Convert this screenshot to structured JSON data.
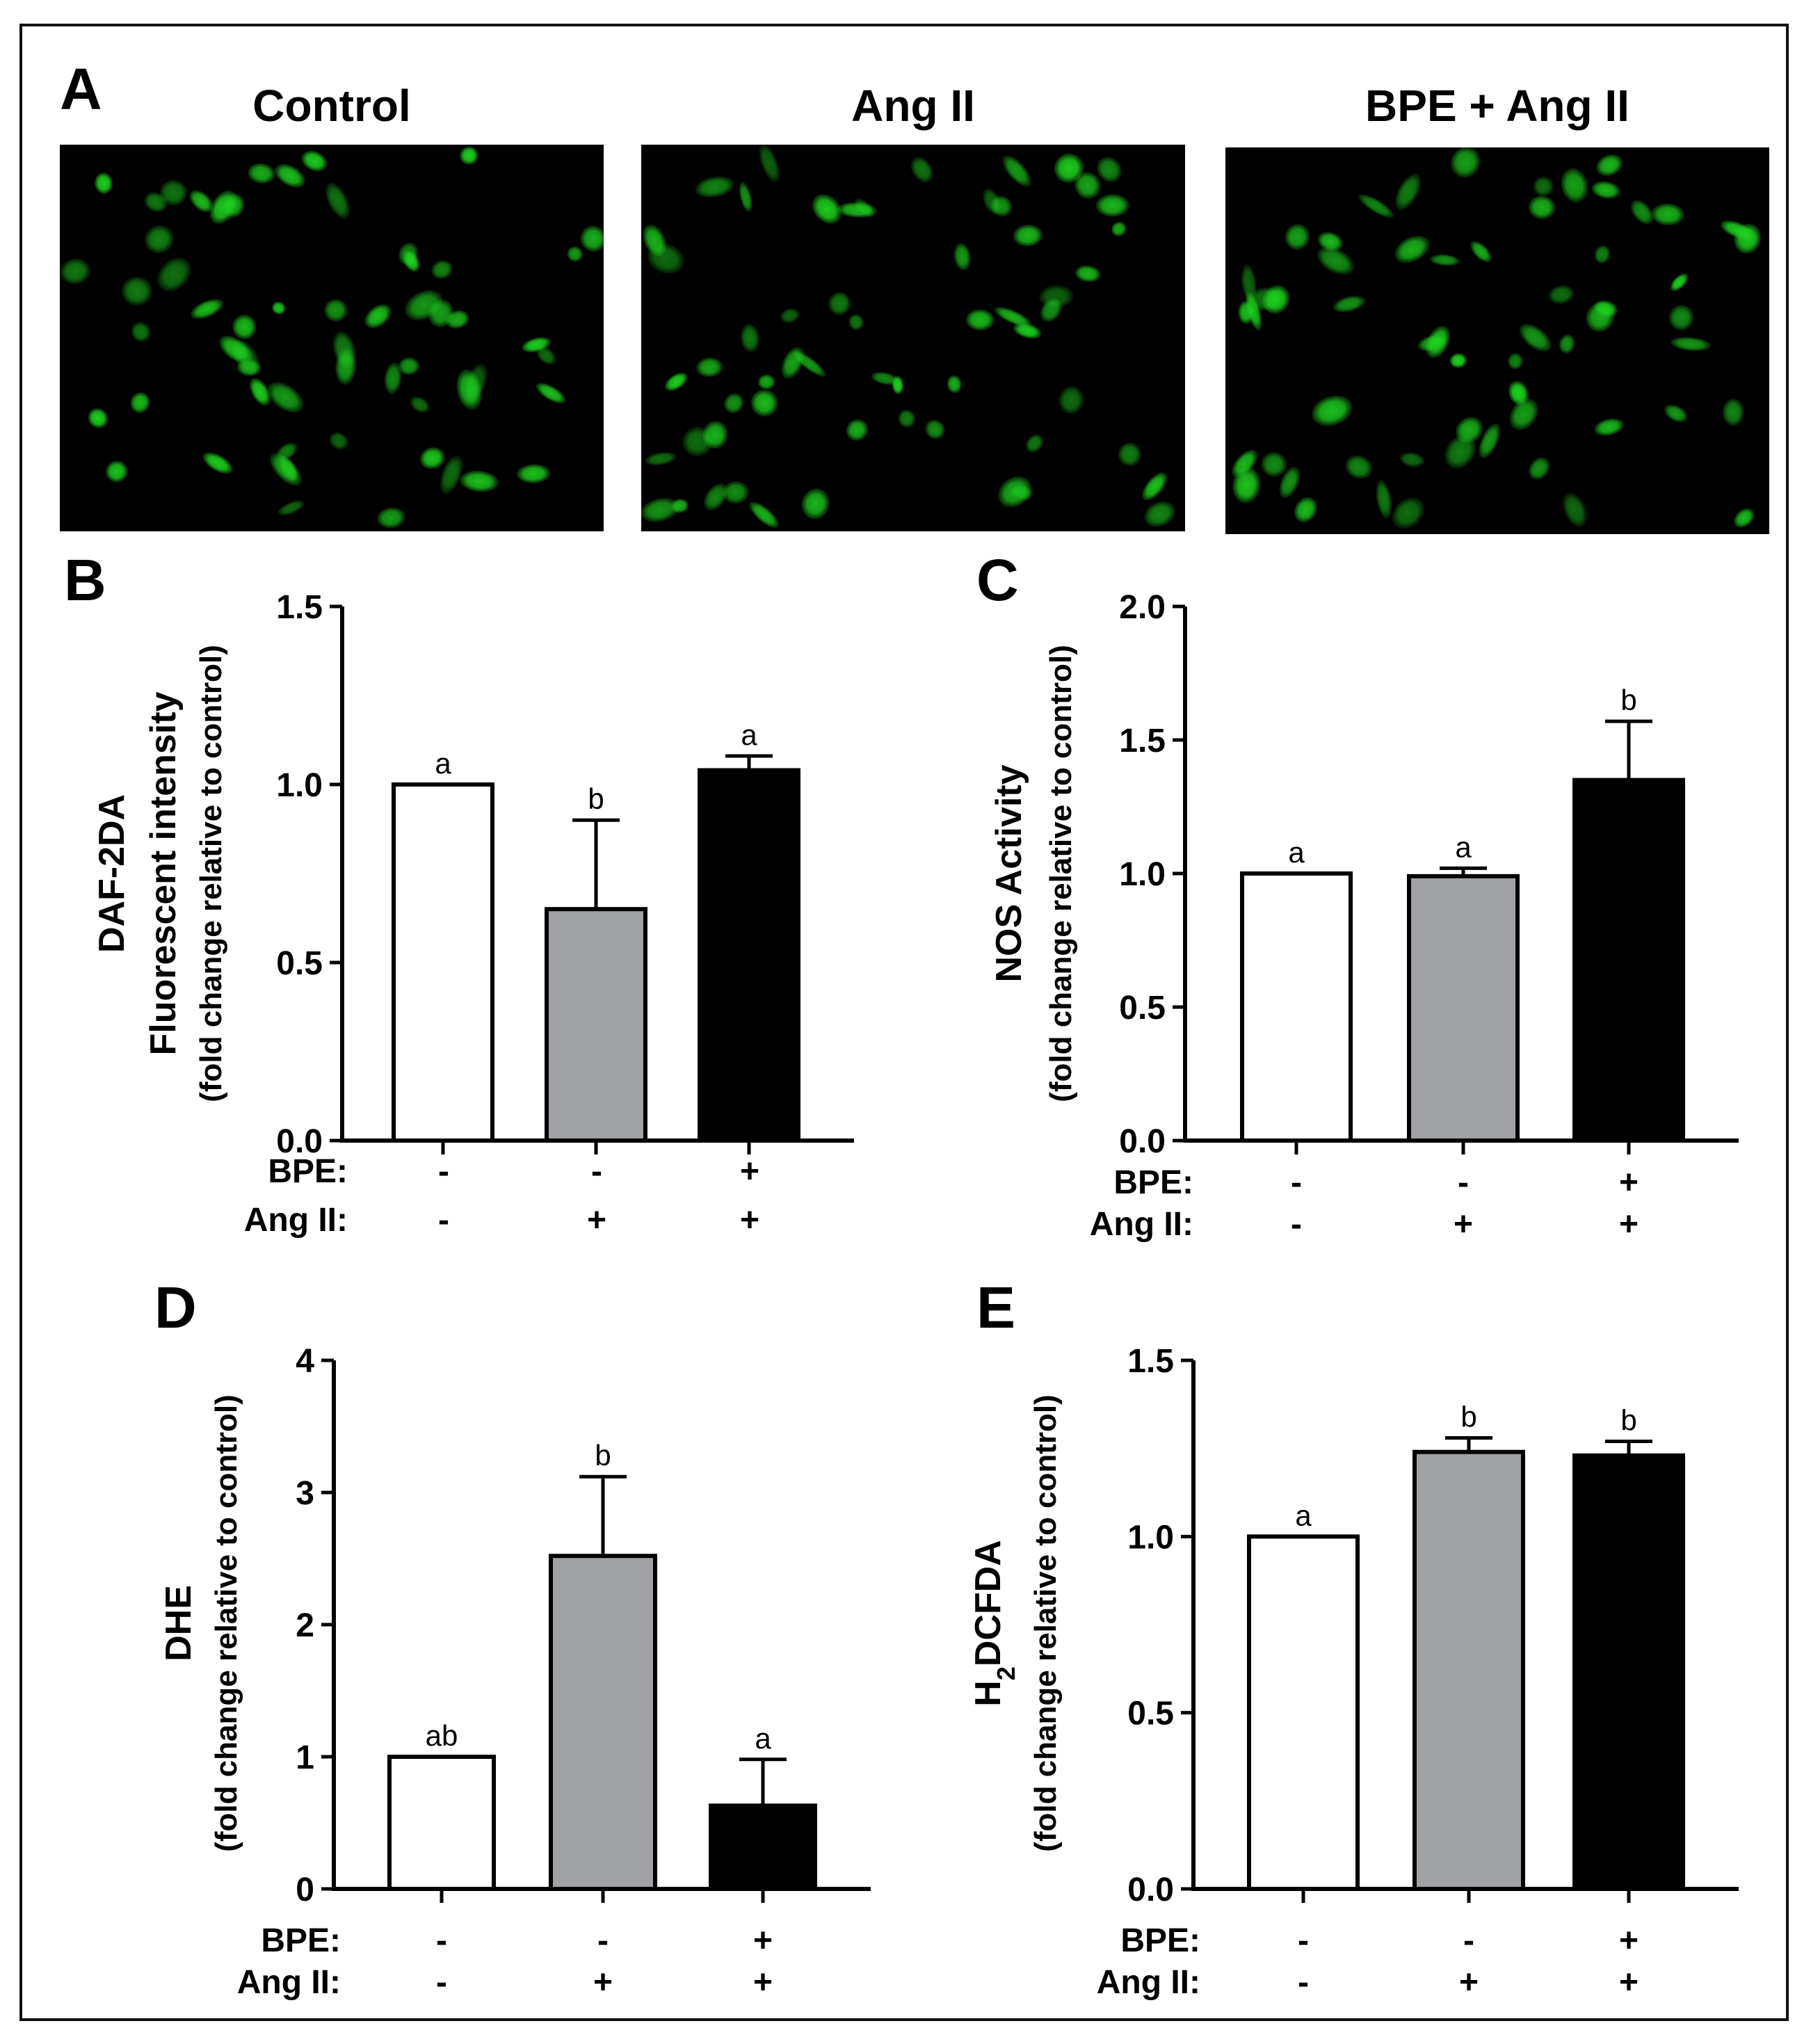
{
  "figure": {
    "colors": {
      "border": "#111111",
      "bar_control": "#ffffff",
      "bar_angii": "#a0a1a4",
      "bar_bpe_angii": "#000000",
      "cell_green": "#1fd620"
    },
    "panel_a": {
      "letter": "A",
      "images": [
        {
          "title": "Control",
          "icon": "green-fluorescent-cells-image"
        },
        {
          "title": "Ang II",
          "icon": "green-fluorescent-cells-image"
        },
        {
          "title": "BPE + Ang II",
          "icon": "green-fluorescent-cells-image"
        }
      ]
    }
  },
  "chart_data": [
    {
      "panel": "B",
      "type": "bar",
      "ylabel_lines": [
        "DAF-2DA",
        "Fluorescent intensity",
        "(fold change relative to control)"
      ],
      "ylim": [
        0,
        1.5
      ],
      "yticks": [
        "0.0",
        "0.5",
        "1.0",
        "1.5"
      ],
      "values": [
        1.0,
        0.65,
        1.04
      ],
      "errors": [
        0.0,
        0.25,
        0.04
      ],
      "significance": [
        "a",
        "b",
        "a"
      ],
      "conditions": [
        {
          "label": "BPE:",
          "signs": [
            "-",
            "-",
            "+"
          ]
        },
        {
          "label": "Ang II:",
          "signs": [
            "-",
            "+",
            "+"
          ]
        }
      ],
      "grid": false,
      "legend": "none"
    },
    {
      "panel": "C",
      "type": "bar",
      "ylabel_lines": [
        "NOS Activity",
        "(fold change relative to control)"
      ],
      "ylim": [
        0,
        2.0
      ],
      "yticks": [
        "0.0",
        "0.5",
        "1.0",
        "1.5",
        "2.0"
      ],
      "values": [
        1.0,
        0.99,
        1.35
      ],
      "errors": [
        0.0,
        0.03,
        0.22
      ],
      "significance": [
        "a",
        "a",
        "b"
      ],
      "conditions": [
        {
          "label": "BPE:",
          "signs": [
            "-",
            "-",
            "+"
          ]
        },
        {
          "label": "Ang II:",
          "signs": [
            "-",
            "+",
            "+"
          ]
        }
      ],
      "grid": false,
      "legend": "none"
    },
    {
      "panel": "D",
      "type": "bar",
      "ylabel_lines": [
        "DHE",
        "(fold change relative to control)"
      ],
      "ylim": [
        0,
        4
      ],
      "yticks": [
        "0",
        "1",
        "2",
        "3",
        "4"
      ],
      "values": [
        1.0,
        2.52,
        0.63
      ],
      "errors": [
        0.0,
        0.6,
        0.35
      ],
      "significance": [
        "ab",
        "b",
        "a"
      ],
      "conditions": [
        {
          "label": "BPE:",
          "signs": [
            "-",
            "-",
            "+"
          ]
        },
        {
          "label": "Ang II:",
          "signs": [
            "-",
            "+",
            "+"
          ]
        }
      ],
      "grid": false,
      "legend": "none"
    },
    {
      "panel": "E",
      "type": "bar",
      "ylabel_lines": [
        "H2DCFDA",
        "(fold change relative to control)"
      ],
      "ylabel_subscript": {
        "prefix": "H",
        "sub": "2",
        "suffix": "DCFDA"
      },
      "ylim": [
        0,
        1.5
      ],
      "yticks": [
        "0.0",
        "0.5",
        "1.0",
        "1.5"
      ],
      "values": [
        1.0,
        1.24,
        1.23
      ],
      "errors": [
        0.0,
        0.04,
        0.04
      ],
      "significance": [
        "a",
        "b",
        "b"
      ],
      "conditions": [
        {
          "label": "BPE:",
          "signs": [
            "-",
            "-",
            "+"
          ]
        },
        {
          "label": "Ang II:",
          "signs": [
            "-",
            "+",
            "+"
          ]
        }
      ],
      "grid": false,
      "legend": "none"
    }
  ]
}
